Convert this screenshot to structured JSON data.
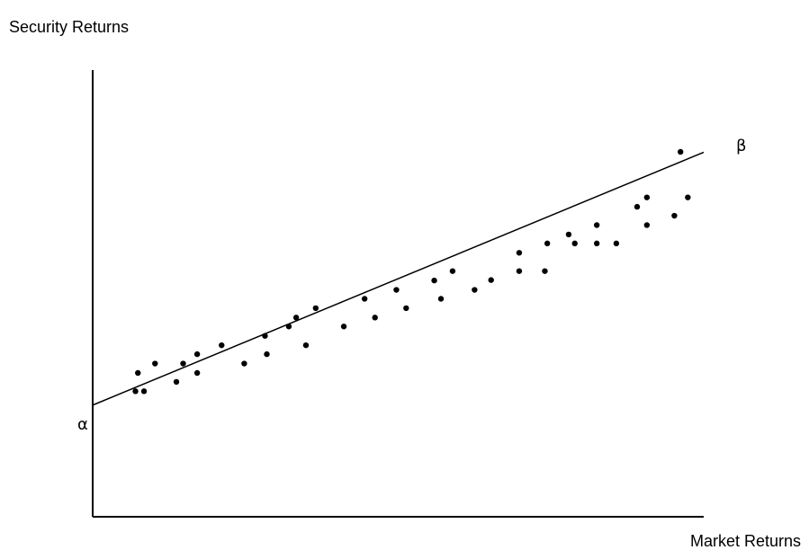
{
  "chart_data": {
    "type": "scatter",
    "ylabel": "Security Returns",
    "xlabel": "Market Returns",
    "intercept_label": "α",
    "slope_label": "β",
    "grid": false,
    "legend": "none",
    "xlim": [
      0,
      100
    ],
    "ylim": [
      0,
      100
    ],
    "regression_line": {
      "intercept": 25,
      "end_y": 81.6
    },
    "points": [
      [
        7,
        28.1
      ],
      [
        7.4,
        32.2
      ],
      [
        8.4,
        28.1
      ],
      [
        10.2,
        34.3
      ],
      [
        13.7,
        30.2
      ],
      [
        14.8,
        34.3
      ],
      [
        17.1,
        32.2
      ],
      [
        17.1,
        36.4
      ],
      [
        21.1,
        38.4
      ],
      [
        24.8,
        34.3
      ],
      [
        28.2,
        40.5
      ],
      [
        28.5,
        36.4
      ],
      [
        32.1,
        42.6
      ],
      [
        33.3,
        44.6
      ],
      [
        34.9,
        38.4
      ],
      [
        36.5,
        46.7
      ],
      [
        41.1,
        42.6
      ],
      [
        44.5,
        48.8
      ],
      [
        46.2,
        44.6
      ],
      [
        49.7,
        50.8
      ],
      [
        51.3,
        46.7
      ],
      [
        55.9,
        52.9
      ],
      [
        57,
        48.8
      ],
      [
        58.9,
        55
      ],
      [
        62.5,
        50.8
      ],
      [
        65.2,
        53
      ],
      [
        69.8,
        55
      ],
      [
        69.8,
        59.1
      ],
      [
        74,
        55
      ],
      [
        74.4,
        61.2
      ],
      [
        77.9,
        63.2
      ],
      [
        78.9,
        61.2
      ],
      [
        82.5,
        61.2
      ],
      [
        82.5,
        65.3
      ],
      [
        85.7,
        61.2
      ],
      [
        89.1,
        69.4
      ],
      [
        90.7,
        65.3
      ],
      [
        90.7,
        71.5
      ],
      [
        95.2,
        67.4
      ],
      [
        96.2,
        81.7
      ],
      [
        97.4,
        71.5
      ]
    ],
    "colors": {
      "axis": "#000000",
      "line": "#000000",
      "points": "#000000"
    }
  }
}
